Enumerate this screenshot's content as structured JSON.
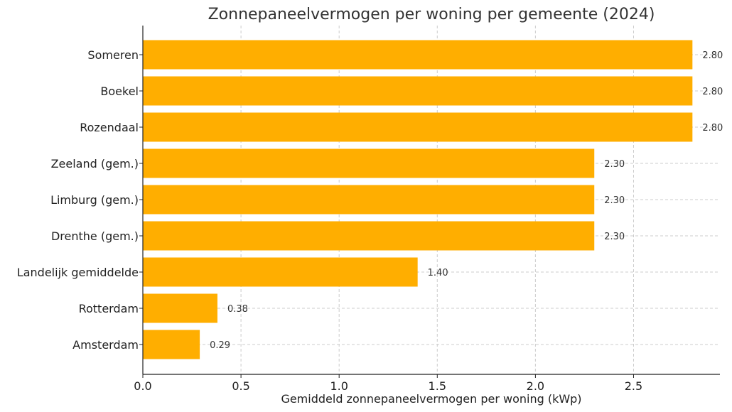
{
  "chart_data": {
    "type": "bar",
    "orientation": "horizontal",
    "title": "Zonnepaneelvermogen per woning per gemeente (2024)",
    "xlabel": "Gemiddeld zonnepaneelvermogen per woning (kWp)",
    "ylabel": "",
    "categories": [
      "Someren",
      "Boekel",
      "Rozendaal",
      "Zeeland (gem.)",
      "Limburg (gem.)",
      "Drenthe (gem.)",
      "Landelijk gemiddelde",
      "Rotterdam",
      "Amsterdam"
    ],
    "values": [
      2.8,
      2.8,
      2.8,
      2.3,
      2.3,
      2.3,
      1.4,
      0.38,
      0.29
    ],
    "data_labels": [
      "2.80",
      "2.80",
      "2.80",
      "2.30",
      "2.30",
      "2.30",
      "1.40",
      "0.38",
      "0.29"
    ],
    "xlim": [
      0,
      2.94
    ],
    "xticks": [
      0.0,
      0.5,
      1.0,
      1.5,
      2.0,
      2.5
    ],
    "xtick_labels": [
      "0.0",
      "0.5",
      "1.0",
      "1.5",
      "2.0",
      "2.5"
    ],
    "grid": true,
    "legend": "none",
    "bar_color": "#FFAE00"
  }
}
